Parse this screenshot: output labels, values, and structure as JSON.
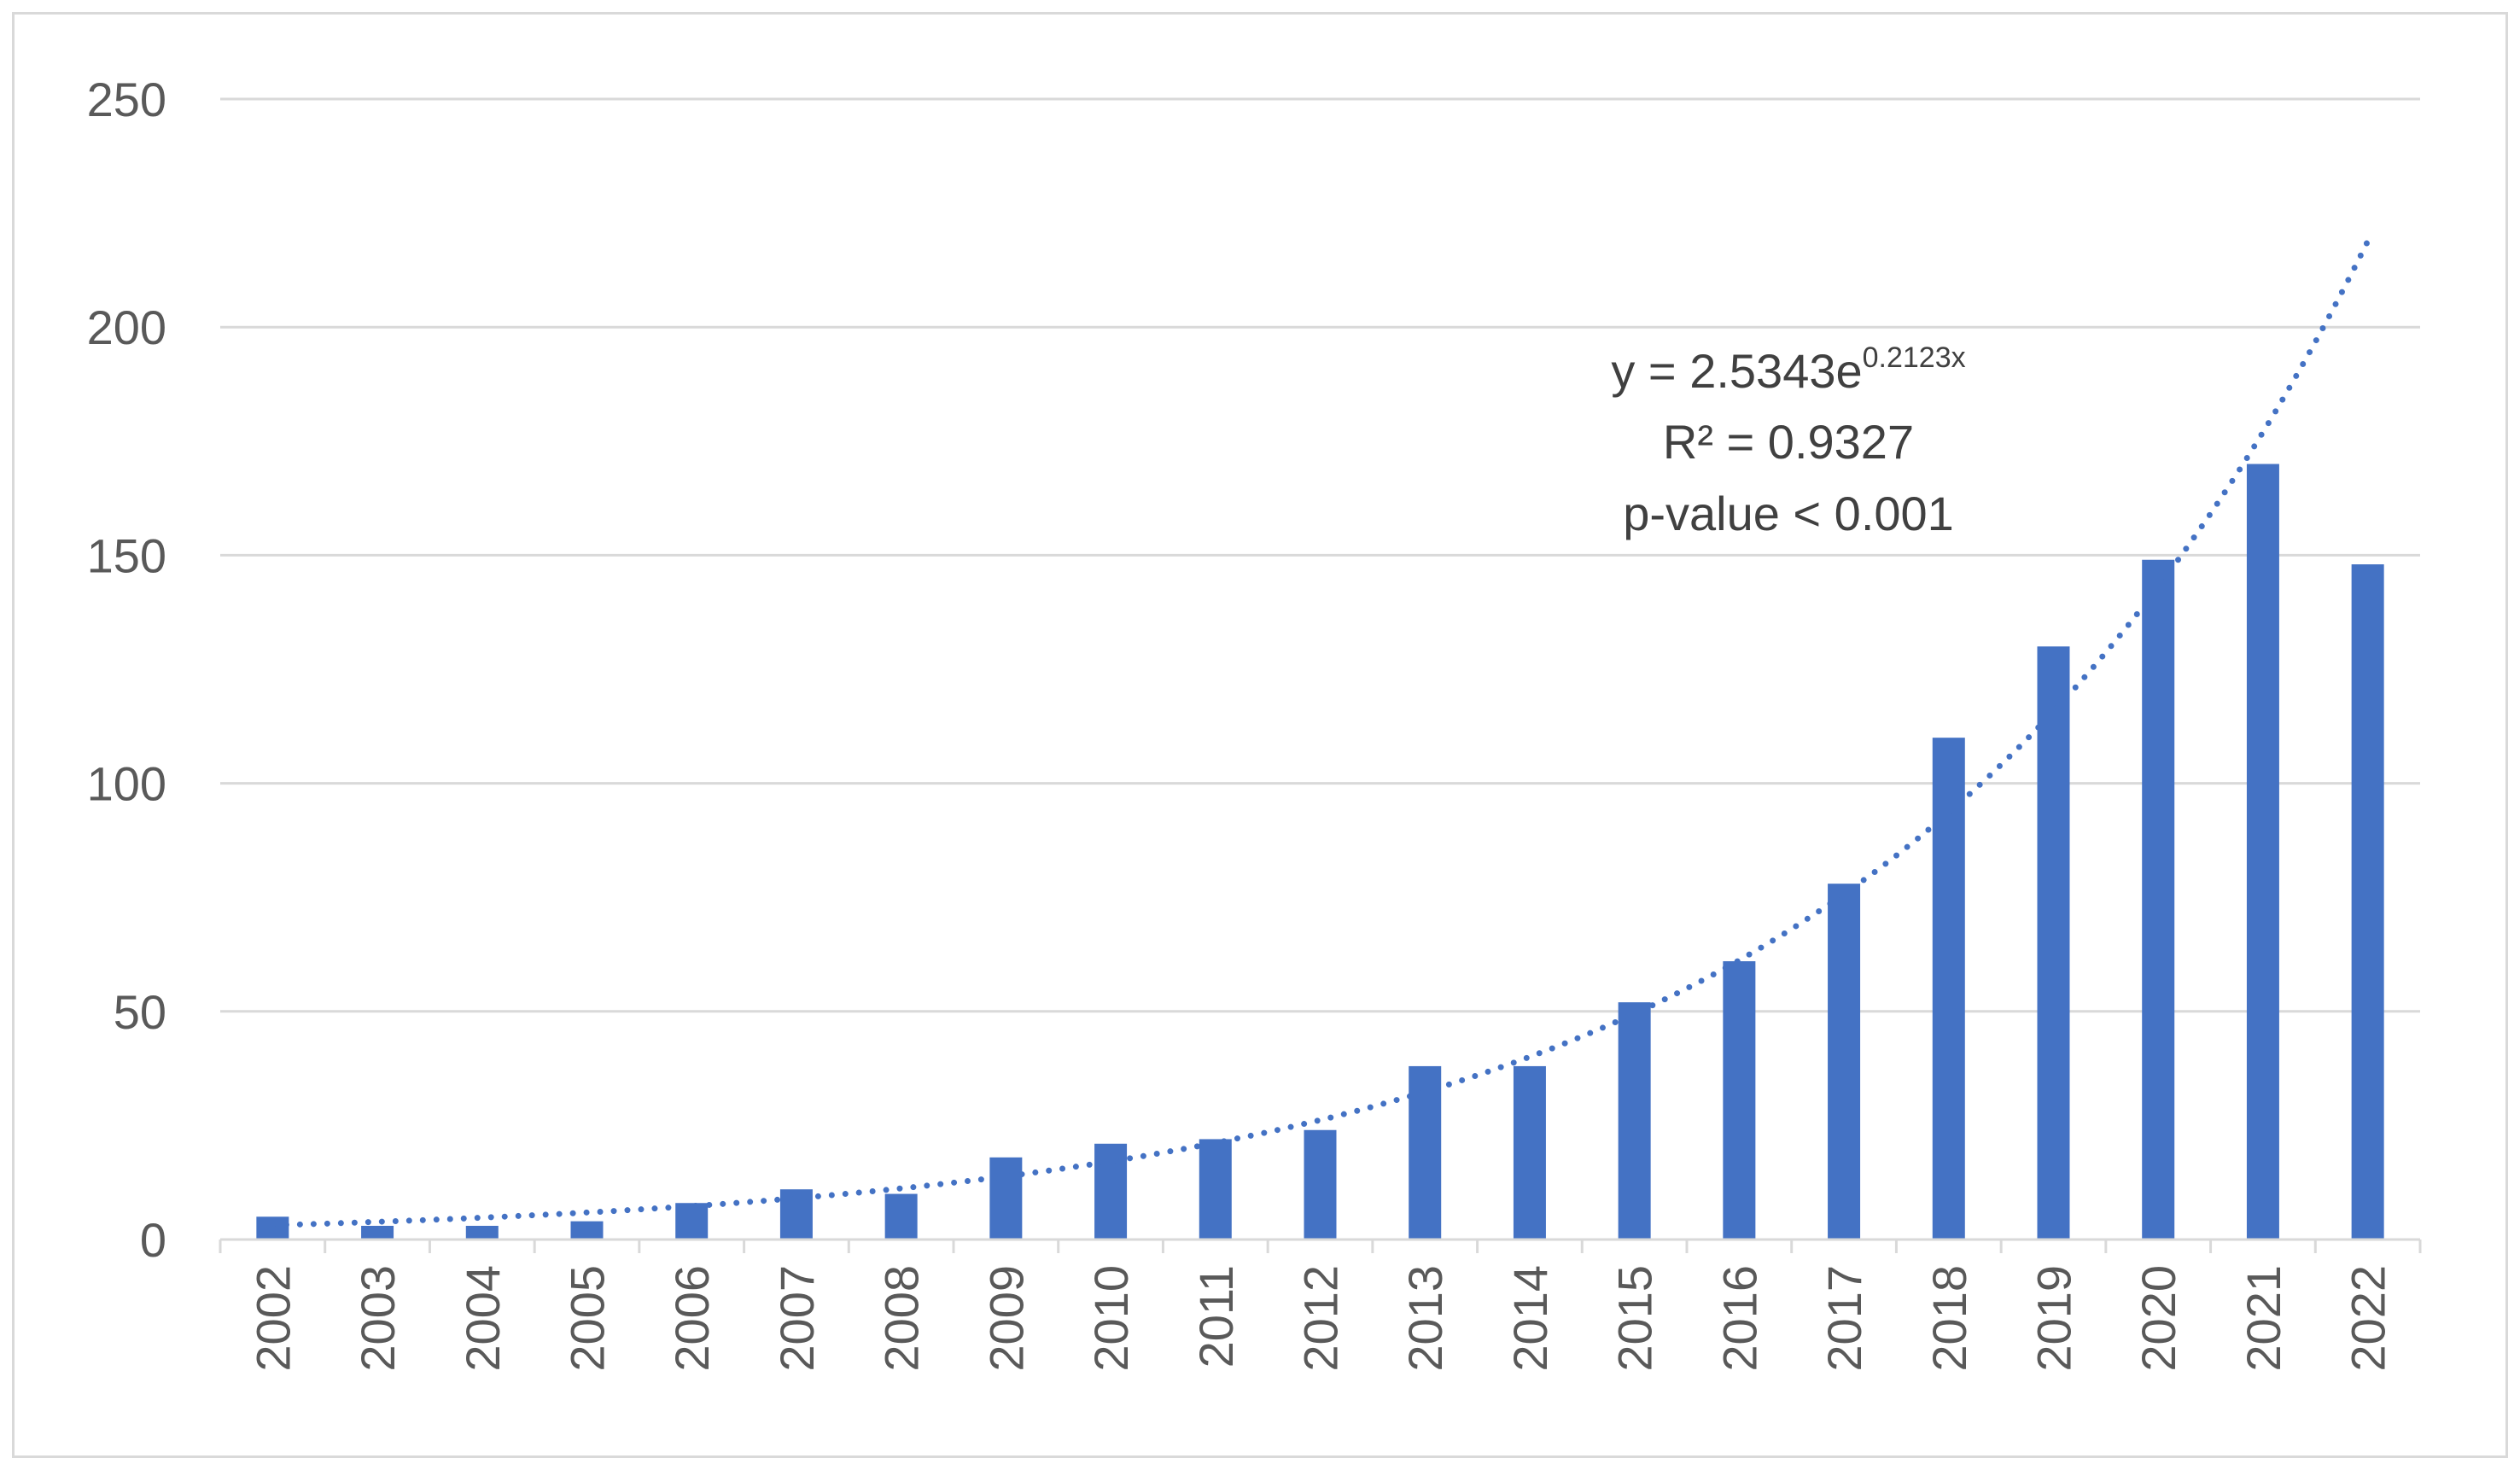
{
  "chart_data": {
    "type": "bar",
    "title": "",
    "xlabel": "",
    "ylabel": "",
    "categories": [
      "2002",
      "2003",
      "2004",
      "2005",
      "2006",
      "2007",
      "2008",
      "2009",
      "2010",
      "2011",
      "2012",
      "2013",
      "2014",
      "2015",
      "2016",
      "2017",
      "2018",
      "2019",
      "2020",
      "2021",
      "2022"
    ],
    "values": [
      5,
      3,
      3,
      4,
      8,
      11,
      10,
      18,
      21,
      22,
      24,
      38,
      38,
      52,
      61,
      78,
      110,
      130,
      149,
      170,
      148
    ],
    "ylim": [
      0,
      250
    ],
    "yticks": [
      0,
      50,
      100,
      150,
      200,
      250
    ],
    "grid": true,
    "legend": "none",
    "bar_color": "#4472c4",
    "trendline": {
      "type": "exponential",
      "style": "dotted",
      "color": "#4472c4",
      "coefficient": 2.5343,
      "rate": 0.2123
    },
    "annotation": {
      "equation_main": "y = 2.5343e",
      "equation_exponent": "0.2123x",
      "r_squared": "R² = 0.9327",
      "p_value": "p-value < 0.001"
    }
  }
}
